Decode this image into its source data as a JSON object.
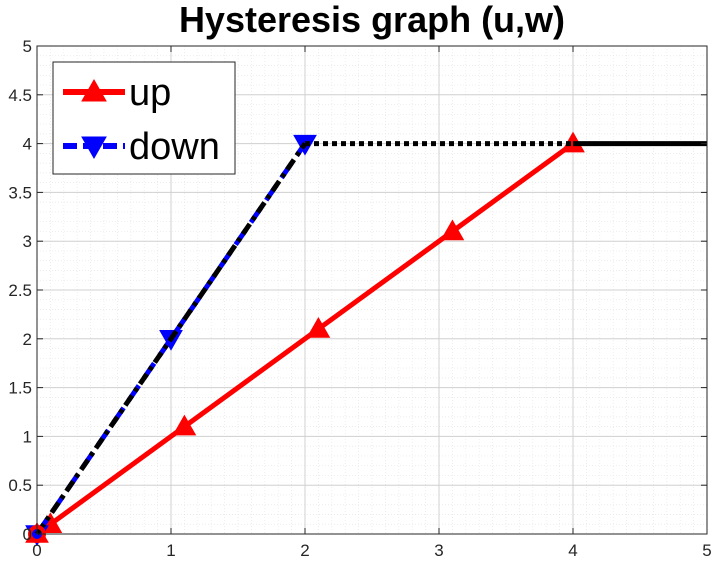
{
  "chart_data": {
    "type": "line",
    "title": "Hysteresis graph (u,w)",
    "xlabel": "",
    "ylabel": "",
    "xlim": [
      0,
      5
    ],
    "ylim": [
      0,
      5
    ],
    "x_ticks": [
      0,
      1,
      2,
      3,
      4,
      5
    ],
    "y_ticks": [
      0,
      0.5,
      1,
      1.5,
      2,
      2.5,
      3,
      3.5,
      4,
      4.5,
      5
    ],
    "grid": true,
    "minor_grid": true,
    "legend_position": "top-left",
    "series": [
      {
        "name": "up",
        "color": "#ff0000",
        "style": "solid",
        "marker": "triangle-up",
        "x": [
          0,
          0.1,
          1.1,
          2.1,
          3.1,
          4.0
        ],
        "y": [
          0,
          0.1,
          1.1,
          2.1,
          3.1,
          4.0
        ]
      },
      {
        "name": "down",
        "color": "#0000ff",
        "style": "dashed",
        "marker": "triangle-down",
        "x": [
          0,
          1.0,
          2.0
        ],
        "y": [
          0,
          2.0,
          4.0
        ]
      }
    ],
    "overlays": [
      {
        "color": "#000000",
        "style": "dashdot",
        "x": [
          0,
          2.0
        ],
        "y": [
          0,
          4.0
        ]
      },
      {
        "color": "#000000",
        "style": "dotted",
        "x": [
          2.0,
          4.0
        ],
        "y": [
          4.0,
          4.0
        ]
      },
      {
        "color": "#000000",
        "style": "solid",
        "x": [
          4.0,
          5.0
        ],
        "y": [
          4.0,
          4.0
        ]
      }
    ],
    "start_marker": {
      "x": 0,
      "y": 0,
      "color": "#ff0000"
    }
  }
}
